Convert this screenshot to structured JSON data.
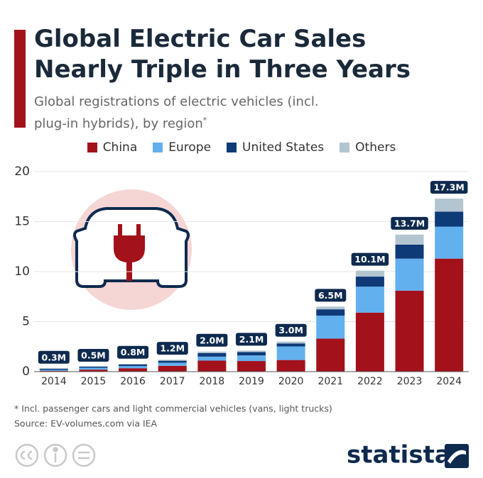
{
  "chart_data": {
    "type": "stacked_bar",
    "title": "Global Electric Car Sales Nearly Triple in Three Years",
    "subtitle": "Global registrations of electric vehicles (incl. plug-in hybrids), by region",
    "subtitle_note": "*",
    "categories": [
      "2014",
      "2015",
      "2016",
      "2017",
      "2018",
      "2019",
      "2020",
      "2021",
      "2022",
      "2023",
      "2024"
    ],
    "series": [
      {
        "name": "China",
        "color": "#a3111b",
        "values": [
          0.08,
          0.2,
          0.34,
          0.58,
          1.1,
          1.06,
          1.16,
          3.3,
          5.9,
          8.1,
          11.3
        ]
      },
      {
        "name": "Europe",
        "color": "#62b0ee",
        "values": [
          0.1,
          0.19,
          0.22,
          0.31,
          0.4,
          0.56,
          1.36,
          2.3,
          2.6,
          3.2,
          3.2
        ]
      },
      {
        "name": "United States",
        "color": "#0e3a78",
        "values": [
          0.12,
          0.11,
          0.16,
          0.2,
          0.36,
          0.33,
          0.3,
          0.63,
          1.0,
          1.4,
          1.5
        ]
      },
      {
        "name": "Others",
        "color": "#b3c5d1",
        "values": [
          0.02,
          0.03,
          0.05,
          0.1,
          0.14,
          0.15,
          0.18,
          0.27,
          0.6,
          1.0,
          1.3
        ]
      }
    ],
    "totals": {
      "values": [
        0.3,
        0.5,
        0.8,
        1.2,
        2.0,
        2.1,
        3.0,
        6.5,
        10.1,
        13.7,
        17.3
      ],
      "value_labels": [
        "0.3M",
        "0.5M",
        "0.8M",
        "1.2M",
        "2.0M",
        "2.1M",
        "3.0M",
        "6.5M",
        "10.1M",
        "13.7M",
        "17.3M"
      ]
    },
    "ylim": [
      0,
      20
    ],
    "yticks": [
      0,
      5,
      10,
      15,
      20
    ],
    "grid": true,
    "footnote": "* Incl. passenger cars and light commercial vehicles (vans, light trucks)",
    "source": "Source: EV-volumes.com via IEA",
    "brand": "statista"
  }
}
